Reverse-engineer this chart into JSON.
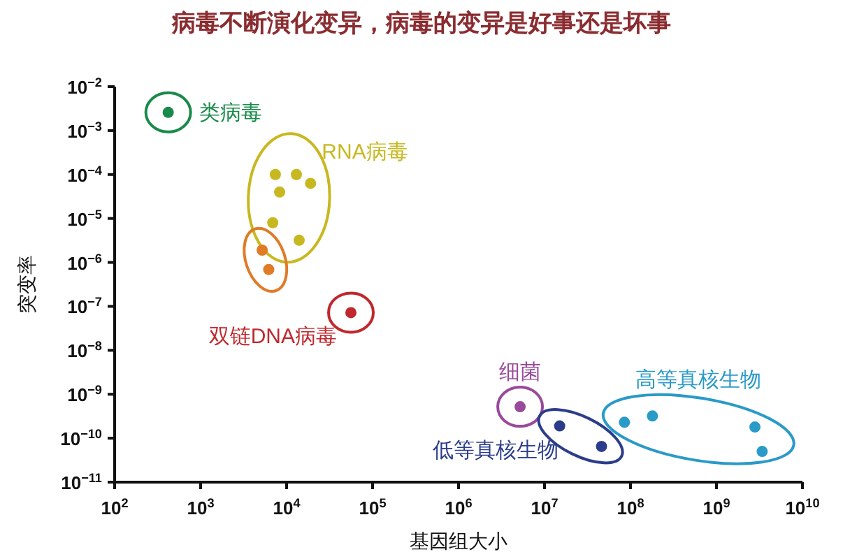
{
  "chart_data": {
    "type": "scatter",
    "title": "病毒不断演化变异，病毒的变异是好事还是坏事",
    "xlabel": "基因组大小",
    "ylabel": "突变率",
    "log": "xy",
    "marker": "circle",
    "grid": false,
    "xlim": [
      100,
      10000000000
    ],
    "ylim": [
      1e-11,
      0.01
    ],
    "xticks": [
      {
        "value": 100,
        "label": "10$^{2}$"
      },
      {
        "value": 1000,
        "label": "10$^{3}$"
      },
      {
        "value": 10000,
        "label": "10$^{4}$"
      },
      {
        "value": 100000,
        "label": "10$^{5}$"
      },
      {
        "value": 1000000,
        "label": "10$^{6}$"
      },
      {
        "value": 10000000,
        "label": "10$^{7}$"
      },
      {
        "value": 100000000,
        "label": "10$^{8}$"
      },
      {
        "value": 1000000000,
        "label": "10$^{9}$"
      },
      {
        "value": 10000000000,
        "label": "10$^{10}$"
      }
    ],
    "yticks": [
      {
        "value": 0.01,
        "label": "10$^{−2}$"
      },
      {
        "value": 0.001,
        "label": "10$^{−3}$"
      },
      {
        "value": 0.0001,
        "label": "10$^{−4}$"
      },
      {
        "value": 1e-05,
        "label": "10$^{−5}$"
      },
      {
        "value": 1e-06,
        "label": "10$^{−6}$"
      },
      {
        "value": 1e-07,
        "label": "10$^{−7}$"
      },
      {
        "value": 1e-08,
        "label": "10$^{−8}$"
      },
      {
        "value": 1e-09,
        "label": "10$^{−9}$"
      },
      {
        "value": 1e-10,
        "label": "10$^{−10}$"
      },
      {
        "value": 1e-11,
        "label": "10$^{−11}$"
      }
    ],
    "series": [
      {
        "name": "类病毒",
        "color": "#1a8a4a",
        "x": [
          420
        ],
        "values": [
          0.0026
        ]
      },
      {
        "name": "RNA病毒",
        "color": "#c8b820",
        "x": [
          7400,
          13000,
          19000,
          8300,
          6900,
          14000
        ],
        "values": [
          0.0001,
          0.0001,
          6.3e-05,
          4e-05,
          8e-06,
          3.2e-06
        ]
      },
      {
        "color": "#e07b28",
        "x": [
          5200,
          6200
        ],
        "values": [
          1.9e-06,
          6.9e-07
        ]
      },
      {
        "name": "双链DNA病毒",
        "color": "#c0282d",
        "x": [
          56000
        ],
        "values": [
          7.2e-08
        ]
      },
      {
        "name": "细菌",
        "color": "#9a4a9a",
        "x": [
          5200000
        ],
        "values": [
          5.2e-10
        ]
      },
      {
        "name": "低等真核生物",
        "color": "#2b3d8a",
        "x": [
          15000000,
          46000000
        ],
        "values": [
          1.9e-10,
          6.5e-11
        ]
      },
      {
        "name": "高等真核生物",
        "color": "#2a9ac8",
        "x": [
          85000000,
          180000000,
          2800000000,
          3400000000
        ],
        "values": [
          2.3e-10,
          3.2e-10,
          1.8e-10,
          5e-11
        ]
      }
    ]
  }
}
